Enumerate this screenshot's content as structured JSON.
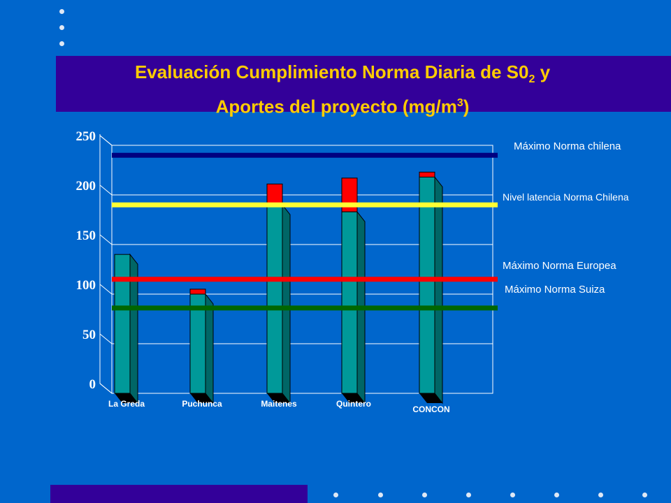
{
  "title": {
    "line1_text": "Evaluación Cumplimiento Norma Diaria de S0",
    "line1_sub": "2",
    "line1_end": " y",
    "line2_text": "Aportes del proyecto  (mg/m",
    "line2_sup": "3",
    "line2_end": ")"
  },
  "colors": {
    "background": "#0066cc",
    "title_band": "#330099",
    "title_text": "#ffcc00",
    "bar_face": "#009999",
    "bar_side": "#006666",
    "bar_top_contribution": "#ff0000",
    "plot_area": "#0066cc"
  },
  "reference_labels": {
    "chile_max": "Máximo Norma chilena",
    "chile_latency": "Nivel latencia Norma Chilena",
    "europe_max": "Máximo Norma Europea",
    "swiss_max": "Máximo Norma Suiza"
  },
  "chart_data": {
    "type": "bar",
    "stacked": true,
    "three_d": true,
    "categories": [
      "La Greda",
      "Puchunca",
      "Maitenes",
      "Quintero",
      "CONCON"
    ],
    "series": [
      {
        "values": [
          140,
          100,
          190,
          183,
          218
        ],
        "color": "#009999"
      },
      {
        "values": [
          0,
          5,
          21,
          34,
          5
        ],
        "color": "#ff0000"
      }
    ],
    "y_ticks": [
      "0",
      "50",
      "100",
      "150",
      "200",
      "250"
    ],
    "ylim": [
      0,
      250
    ],
    "reference_lines": [
      {
        "label": "Máximo Norma chilena",
        "value": 240,
        "color": "#000080"
      },
      {
        "label": "Nivel latencia Norma Chilena",
        "value": 190,
        "color": "#ffff33"
      },
      {
        "label": "Máximo Norma Europea",
        "value": 115,
        "color": "#ff0000"
      },
      {
        "label": "Máximo Norma Suiza",
        "value": 86,
        "color": "#006600"
      }
    ],
    "xlabel": "",
    "ylabel": "",
    "grid": true,
    "legend": "right"
  }
}
